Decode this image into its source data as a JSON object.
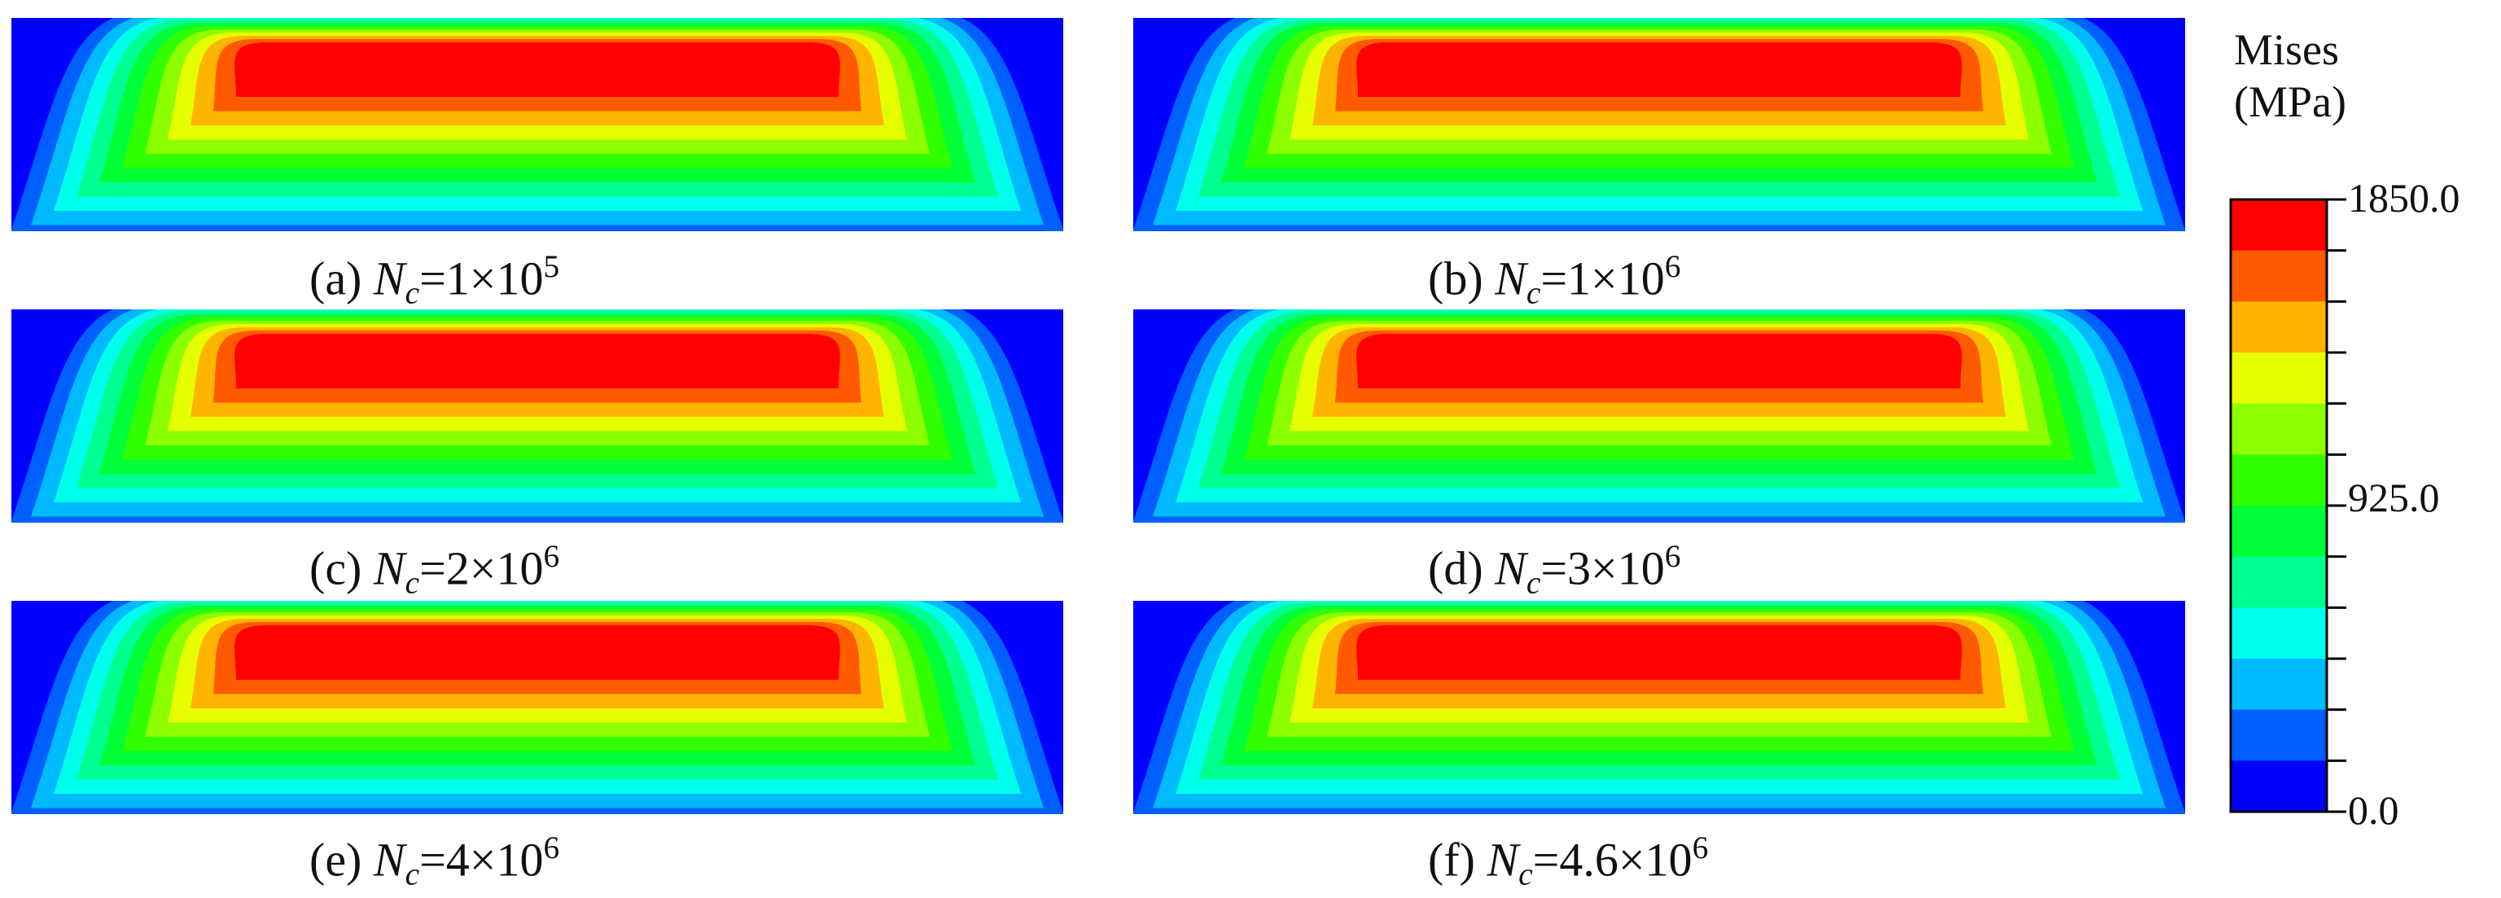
{
  "panels": [
    {
      "id": "a",
      "letter": "(a)",
      "var": "N",
      "sub": "c",
      "eq": "=1×10",
      "exp": "5",
      "row": 0,
      "col": 0
    },
    {
      "id": "b",
      "letter": "(b)",
      "var": "N",
      "sub": "c",
      "eq": "=1×10",
      "exp": "6",
      "row": 0,
      "col": 1
    },
    {
      "id": "c",
      "letter": "(c)",
      "var": "N",
      "sub": "c",
      "eq": "=2×10",
      "exp": "6",
      "row": 1,
      "col": 0
    },
    {
      "id": "d",
      "letter": "(d)",
      "var": "N",
      "sub": "c",
      "eq": "=3×10",
      "exp": "6",
      "row": 1,
      "col": 1
    },
    {
      "id": "e",
      "letter": "(e)",
      "var": "N",
      "sub": "c",
      "eq": "=4×10",
      "exp": "6",
      "row": 2,
      "col": 0
    },
    {
      "id": "f",
      "letter": "(f)",
      "var": "N",
      "sub": "c",
      "eq": "=4.6×10",
      "exp": "6",
      "row": 2,
      "col": 1
    }
  ],
  "legend": {
    "title_line1": "Mises",
    "title_line2": "(MPa)",
    "max_label": "1850.0",
    "mid_label": "925.0",
    "min_label": "0.0",
    "colors": [
      "#ff0000",
      "#ff5a00",
      "#ffb400",
      "#e6ff00",
      "#8cff00",
      "#32ff00",
      "#00ff37",
      "#00ff91",
      "#00ffeb",
      "#00baff",
      "#005fff",
      "#0000ff"
    ]
  },
  "contour_colors": {
    "outer": "#0000ff",
    "bands": [
      "#005fff",
      "#00baff",
      "#00ffeb",
      "#00ff91",
      "#00ff37",
      "#32ff00",
      "#8cff00",
      "#e6ff00",
      "#ffb400",
      "#ff5a00",
      "#ff0000"
    ]
  }
}
